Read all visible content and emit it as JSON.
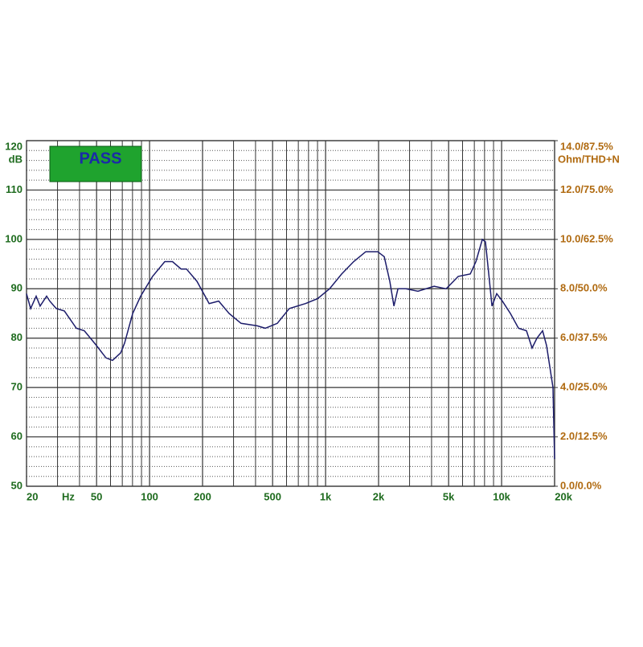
{
  "chart_data": {
    "type": "line",
    "badge": "PASS",
    "y_unit": "dB",
    "y2_unit": "Ohm/THD+N",
    "x_unit": "Hz",
    "log_x": true,
    "grid": true,
    "xlim": [
      20,
      20000
    ],
    "ylim": [
      50,
      120
    ],
    "y2lim": [
      0,
      14
    ],
    "xticks": [
      20,
      50,
      100,
      200,
      500,
      {
        "value": 1000,
        "label": "1k"
      },
      {
        "value": 2000,
        "label": "2k"
      },
      {
        "value": 5000,
        "label": "5k"
      },
      {
        "value": 10000,
        "label": "10k"
      },
      {
        "value": 20000,
        "label": "20k"
      }
    ],
    "xgrid_minor": [
      30,
      40,
      60,
      70,
      80,
      90,
      300,
      400,
      600,
      700,
      800,
      900,
      3000,
      4000,
      6000,
      7000,
      8000,
      9000
    ],
    "yticks": [
      50,
      60,
      70,
      80,
      90,
      100,
      110,
      120
    ],
    "yminor_step": 2,
    "y2ticks": [
      {
        "value": 0,
        "label": "0.0/0.0%"
      },
      {
        "value": 2,
        "label": "2.0/12.5%"
      },
      {
        "value": 4,
        "label": "4.0/25.0%"
      },
      {
        "value": 6,
        "label": "6.0/37.5%"
      },
      {
        "value": 8,
        "label": "8.0/50.0%"
      },
      {
        "value": 10,
        "label": "10.0/62.5%"
      },
      {
        "value": 12,
        "label": "12.0/75.0%"
      },
      {
        "value": 14,
        "label": "14.0/87.5%"
      }
    ],
    "x": [
      20,
      21.1,
      22.7,
      23.9,
      26,
      27.1,
      29.5,
      32.8,
      38.4,
      42.6,
      49.9,
      56.6,
      61.6,
      68.5,
      72.1,
      80.2,
      89,
      104,
      122,
      135,
      151,
      162,
      186,
      218,
      247,
      283,
      331,
      409,
      454,
      532,
      622,
      768,
      900,
      1053,
      1234,
      1443,
      1691,
      1979,
      2154,
      2318,
      2444,
      2576,
      2861,
      3349,
      4134,
      4842,
      5670,
      6636,
      7146,
      7770,
      8100,
      8452,
      8815,
      9380,
      10100,
      11220,
      12480,
      13840,
      14900,
      15890,
      17100,
      18000,
      19590,
      20000
    ],
    "series": [
      {
        "color": "#1c1c6a",
        "values": [
          89,
          86,
          88.5,
          86.5,
          88.5,
          87.5,
          86,
          85.5,
          82,
          81.5,
          78.5,
          76,
          75.5,
          77,
          79,
          85,
          88.5,
          92.5,
          95.5,
          95.5,
          94,
          94,
          91.5,
          87,
          87.5,
          85,
          83,
          82.5,
          82,
          83,
          86,
          87,
          88,
          90,
          93,
          95.5,
          97.5,
          97.5,
          96.5,
          91.5,
          86.5,
          90,
          90,
          89.5,
          90.5,
          90,
          92.5,
          93,
          95.5,
          100,
          99.5,
          93,
          86.5,
          89,
          87.5,
          85,
          82,
          81.5,
          78,
          80,
          81.5,
          78.5,
          70,
          55.5
        ]
      }
    ]
  }
}
